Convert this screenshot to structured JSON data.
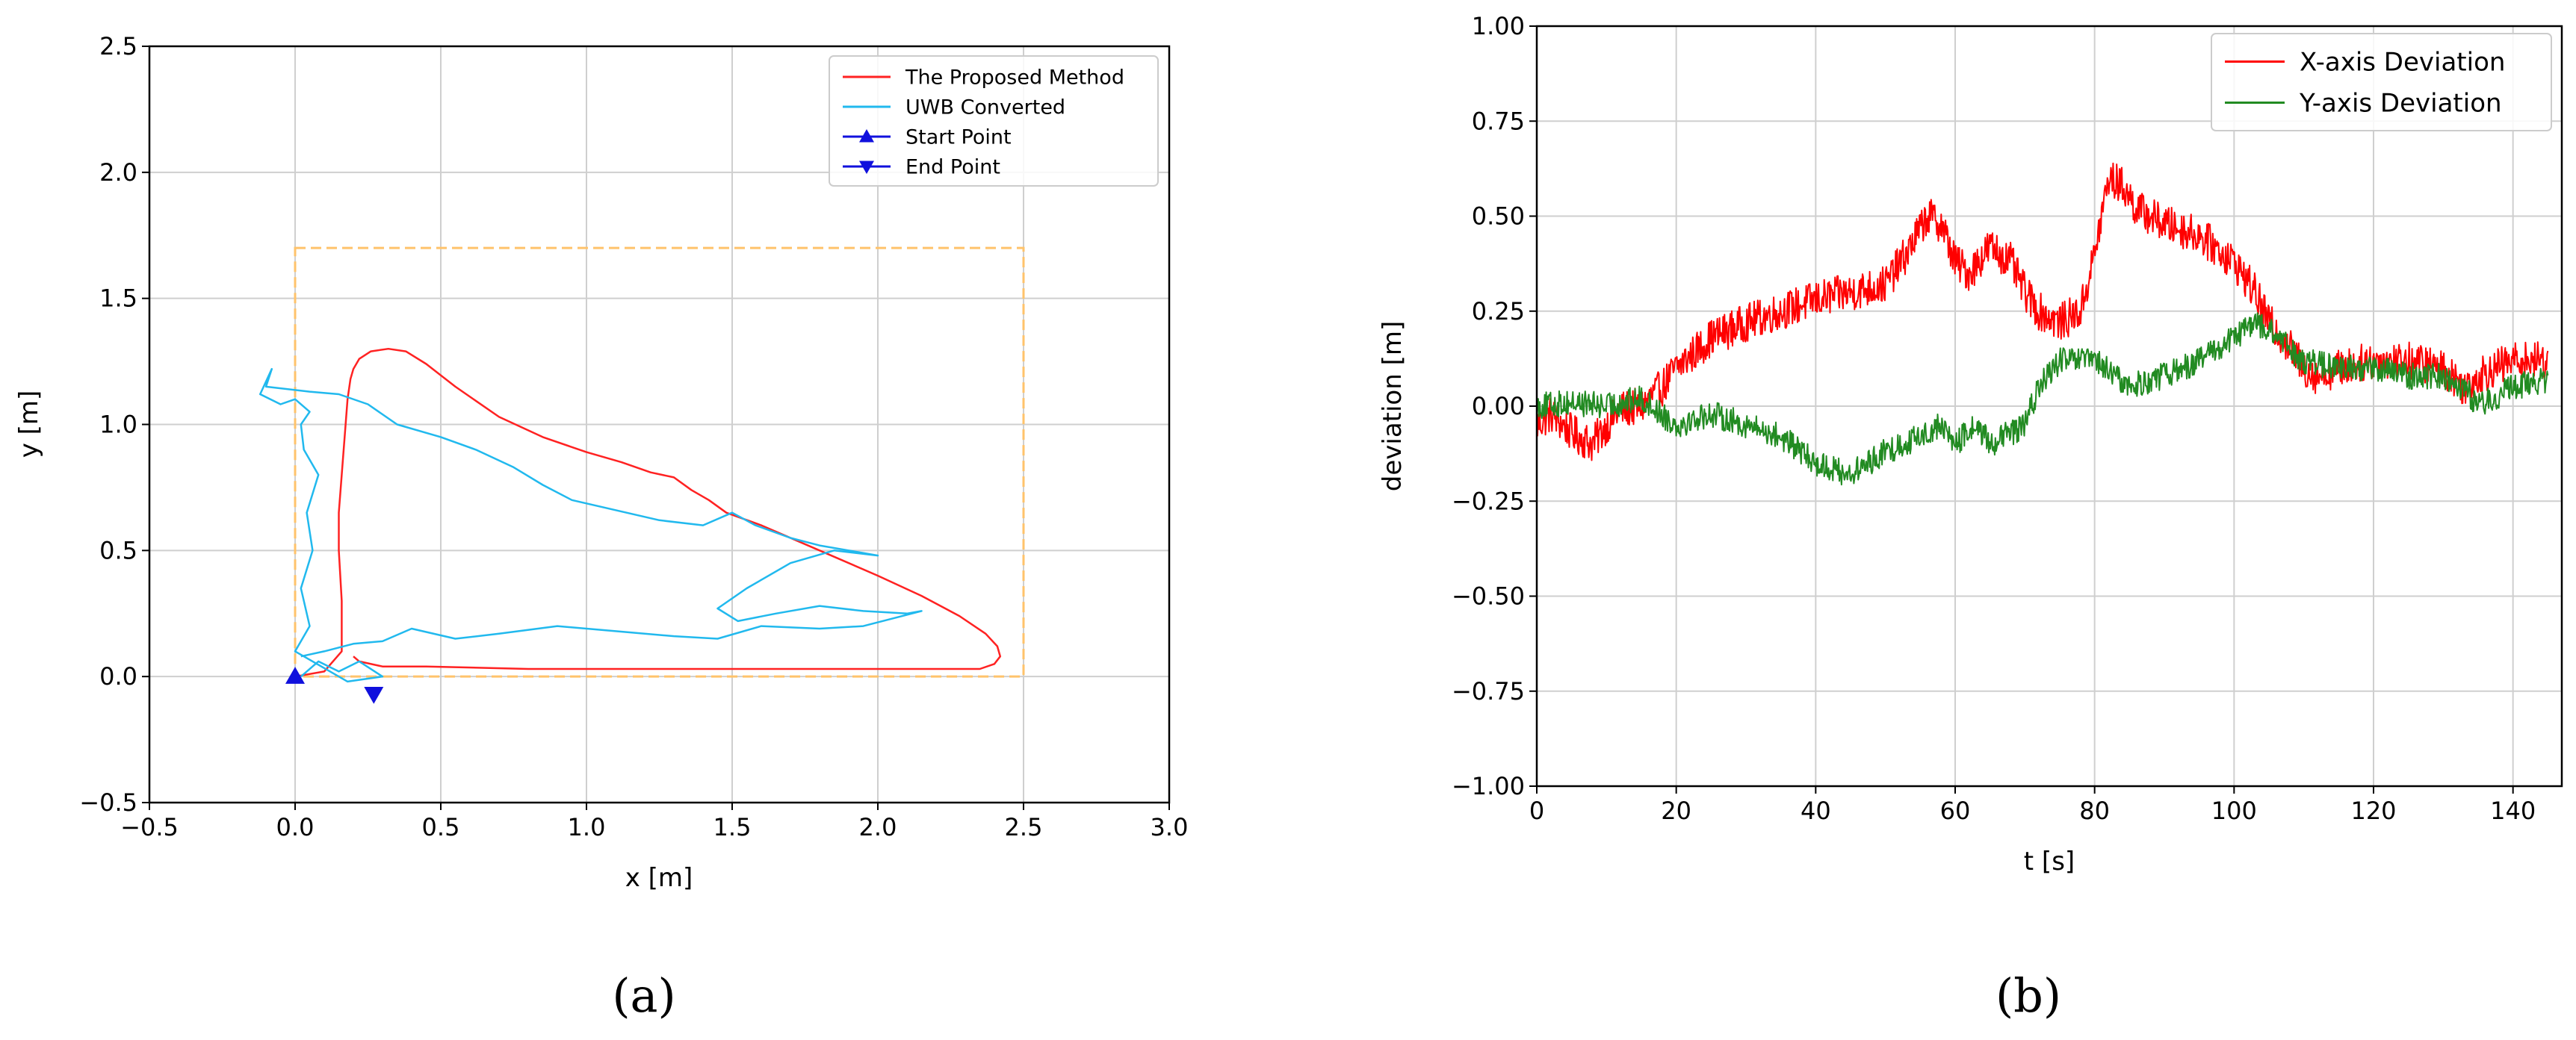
{
  "chart_data": [
    {
      "type": "line",
      "panel_label": "(a)",
      "xlabel": "x [m]",
      "ylabel": "y [m]",
      "xlim": [
        -0.5,
        3.0
      ],
      "ylim": [
        -0.5,
        2.5
      ],
      "xticks": [
        -0.5,
        0.0,
        0.5,
        1.0,
        1.5,
        2.0,
        2.5,
        3.0
      ],
      "xtick_labels": [
        "−0.5",
        "0.0",
        "0.5",
        "1.0",
        "1.5",
        "2.0",
        "2.5",
        "3.0"
      ],
      "yticks": [
        -0.5,
        0.0,
        0.5,
        1.0,
        1.5,
        2.0,
        2.5
      ],
      "ytick_labels": [
        "−0.5",
        "0.0",
        "0.5",
        "1.0",
        "1.5",
        "2.0",
        "2.5"
      ],
      "grid": true,
      "legend_position": "top-right",
      "reference_rectangle": {
        "x": [
          0.0,
          2.5
        ],
        "y": [
          0.0,
          1.7
        ],
        "color": "#ffc36b",
        "style": "dashed"
      },
      "series": [
        {
          "name": "The Proposed Method",
          "color": "#ff2222",
          "x": [
            0.0,
            0.1,
            0.16,
            0.16,
            0.15,
            0.15,
            0.16,
            0.17,
            0.18,
            0.19,
            0.2,
            0.22,
            0.26,
            0.32,
            0.38,
            0.45,
            0.55,
            0.7,
            0.85,
            1.0,
            1.12,
            1.22,
            1.3,
            1.36,
            1.42,
            1.48,
            1.6,
            1.8,
            2.0,
            2.15,
            2.28,
            2.37,
            2.41,
            2.42,
            2.4,
            2.35,
            2.2,
            2.0,
            1.6,
            1.2,
            0.8,
            0.45,
            0.3,
            0.22,
            0.2
          ],
          "y": [
            0.0,
            0.02,
            0.1,
            0.3,
            0.5,
            0.65,
            0.8,
            0.95,
            1.1,
            1.18,
            1.22,
            1.26,
            1.29,
            1.3,
            1.29,
            1.24,
            1.15,
            1.03,
            0.95,
            0.89,
            0.85,
            0.81,
            0.79,
            0.74,
            0.7,
            0.65,
            0.6,
            0.5,
            0.4,
            0.32,
            0.24,
            0.17,
            0.12,
            0.08,
            0.05,
            0.03,
            0.03,
            0.03,
            0.03,
            0.03,
            0.03,
            0.04,
            0.04,
            0.06,
            0.08
          ]
        },
        {
          "name": "UWB Converted",
          "color": "#21b9ee",
          "x": [
            0.02,
            0.08,
            0.15,
            0.22,
            0.3,
            0.18,
            0.0,
            0.05,
            0.02,
            0.06,
            0.04,
            0.08,
            0.03,
            0.02,
            0.05,
            0.0,
            -0.05,
            -0.12,
            -0.08,
            -0.1,
            0.05,
            0.15,
            0.25,
            0.35,
            0.5,
            0.62,
            0.75,
            0.85,
            0.95,
            1.1,
            1.25,
            1.4,
            1.5,
            1.58,
            1.7,
            1.8,
            1.9,
            2.0,
            1.85,
            1.7,
            1.55,
            1.45,
            1.52,
            1.65,
            1.8,
            1.95,
            2.1,
            2.15,
            1.95,
            1.8,
            1.6,
            1.45,
            1.3,
            1.1,
            0.9,
            0.7,
            0.55,
            0.4,
            0.3,
            0.2,
            0.1,
            0.02
          ],
          "y": [
            0.0,
            0.06,
            0.02,
            0.06,
            0.0,
            -0.02,
            0.1,
            0.2,
            0.35,
            0.5,
            0.65,
            0.8,
            0.9,
            1.0,
            1.05,
            1.1,
            1.08,
            1.12,
            1.22,
            1.15,
            1.13,
            1.12,
            1.08,
            1.0,
            0.95,
            0.9,
            0.83,
            0.76,
            0.7,
            0.66,
            0.62,
            0.6,
            0.65,
            0.6,
            0.55,
            0.52,
            0.5,
            0.48,
            0.5,
            0.45,
            0.35,
            0.27,
            0.22,
            0.25,
            0.28,
            0.26,
            0.25,
            0.26,
            0.2,
            0.19,
            0.2,
            0.15,
            0.16,
            0.18,
            0.2,
            0.17,
            0.15,
            0.19,
            0.14,
            0.13,
            0.1,
            0.08
          ]
        },
        {
          "name": "Start Point",
          "color": "#1010dd",
          "marker": "triangle-up",
          "x": [
            0.0
          ],
          "y": [
            0.0
          ]
        },
        {
          "name": "End Point",
          "color": "#1010dd",
          "marker": "triangle-down",
          "x": [
            0.27
          ],
          "y": [
            -0.07
          ]
        }
      ]
    },
    {
      "type": "line",
      "panel_label": "(b)",
      "xlabel": "t [s]",
      "ylabel": "deviation [m]",
      "xlim": [
        0,
        147
      ],
      "ylim": [
        -1.0,
        1.0
      ],
      "xticks": [
        0,
        20,
        40,
        60,
        80,
        100,
        120,
        140
      ],
      "xtick_labels": [
        "0",
        "20",
        "40",
        "60",
        "80",
        "100",
        "120",
        "140"
      ],
      "yticks": [
        -1.0,
        -0.75,
        -0.5,
        -0.25,
        0.0,
        0.25,
        0.5,
        0.75,
        1.0
      ],
      "ytick_labels": [
        "−1.00",
        "−0.75",
        "−0.50",
        "−0.25",
        "0.00",
        "0.25",
        "0.50",
        "0.75",
        "1.00"
      ],
      "grid": true,
      "legend_position": "top-right",
      "noise_amplitude": {
        "X-axis Deviation": 0.05,
        "Y-axis Deviation": 0.035
      },
      "series": [
        {
          "name": "X-axis Deviation",
          "color": "#ff0000",
          "x": [
            0,
            2,
            5,
            8,
            10,
            12,
            15,
            18,
            20,
            25,
            30,
            35,
            40,
            45,
            50,
            53,
            56,
            58,
            60,
            62,
            65,
            68,
            70,
            72,
            75,
            78,
            80,
            82,
            84,
            86,
            90,
            95,
            100,
            103,
            105,
            107,
            110,
            112,
            115,
            120,
            125,
            130,
            133,
            135,
            140,
            145
          ],
          "y": [
            -0.05,
            -0.02,
            -0.07,
            -0.1,
            -0.05,
            -0.01,
            0.0,
            0.05,
            0.1,
            0.18,
            0.22,
            0.25,
            0.28,
            0.3,
            0.32,
            0.4,
            0.5,
            0.48,
            0.38,
            0.35,
            0.42,
            0.38,
            0.3,
            0.25,
            0.22,
            0.25,
            0.4,
            0.6,
            0.58,
            0.52,
            0.48,
            0.45,
            0.38,
            0.3,
            0.22,
            0.18,
            0.1,
            0.08,
            0.1,
            0.12,
            0.12,
            0.1,
            0.05,
            0.08,
            0.12,
            0.12
          ]
        },
        {
          "name": "Y-axis Deviation",
          "color": "#228b22",
          "x": [
            0,
            5,
            10,
            15,
            20,
            25,
            30,
            35,
            40,
            45,
            50,
            55,
            58,
            60,
            63,
            65,
            70,
            72,
            75,
            80,
            85,
            90,
            95,
            100,
            103,
            105,
            108,
            110,
            115,
            120,
            125,
            130,
            133,
            135,
            140,
            145
          ],
          "y": [
            0.0,
            0.01,
            0.0,
            0.02,
            -0.05,
            -0.02,
            -0.05,
            -0.08,
            -0.15,
            -0.18,
            -0.12,
            -0.08,
            -0.05,
            -0.1,
            -0.05,
            -0.1,
            -0.05,
            0.05,
            0.12,
            0.12,
            0.05,
            0.08,
            0.12,
            0.18,
            0.22,
            0.2,
            0.15,
            0.12,
            0.1,
            0.1,
            0.08,
            0.08,
            0.05,
            0.0,
            0.05,
            0.07
          ]
        }
      ]
    }
  ]
}
